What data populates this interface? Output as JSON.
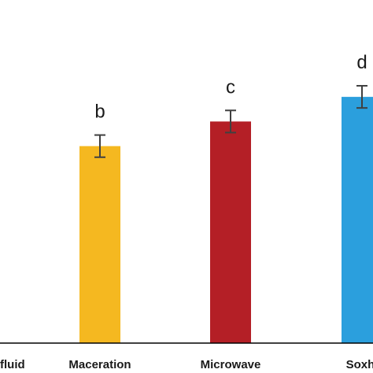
{
  "chart_data": {
    "type": "bar",
    "categories": [
      "fluid",
      "Maceration",
      "Microwave",
      "Soxhl"
    ],
    "values": [
      null,
      80,
      90,
      100
    ],
    "errors": [
      null,
      4.5,
      4.5,
      4.5
    ],
    "significance_labels": [
      "",
      "b",
      "c",
      "d"
    ],
    "colors": [
      "#ffffff",
      "#f5b820",
      "#b41f26",
      "#2b9fdd"
    ],
    "title": "",
    "xlabel": "",
    "ylabel": "",
    "ylim": [
      0,
      124
    ],
    "grid": false,
    "legend": "none"
  }
}
